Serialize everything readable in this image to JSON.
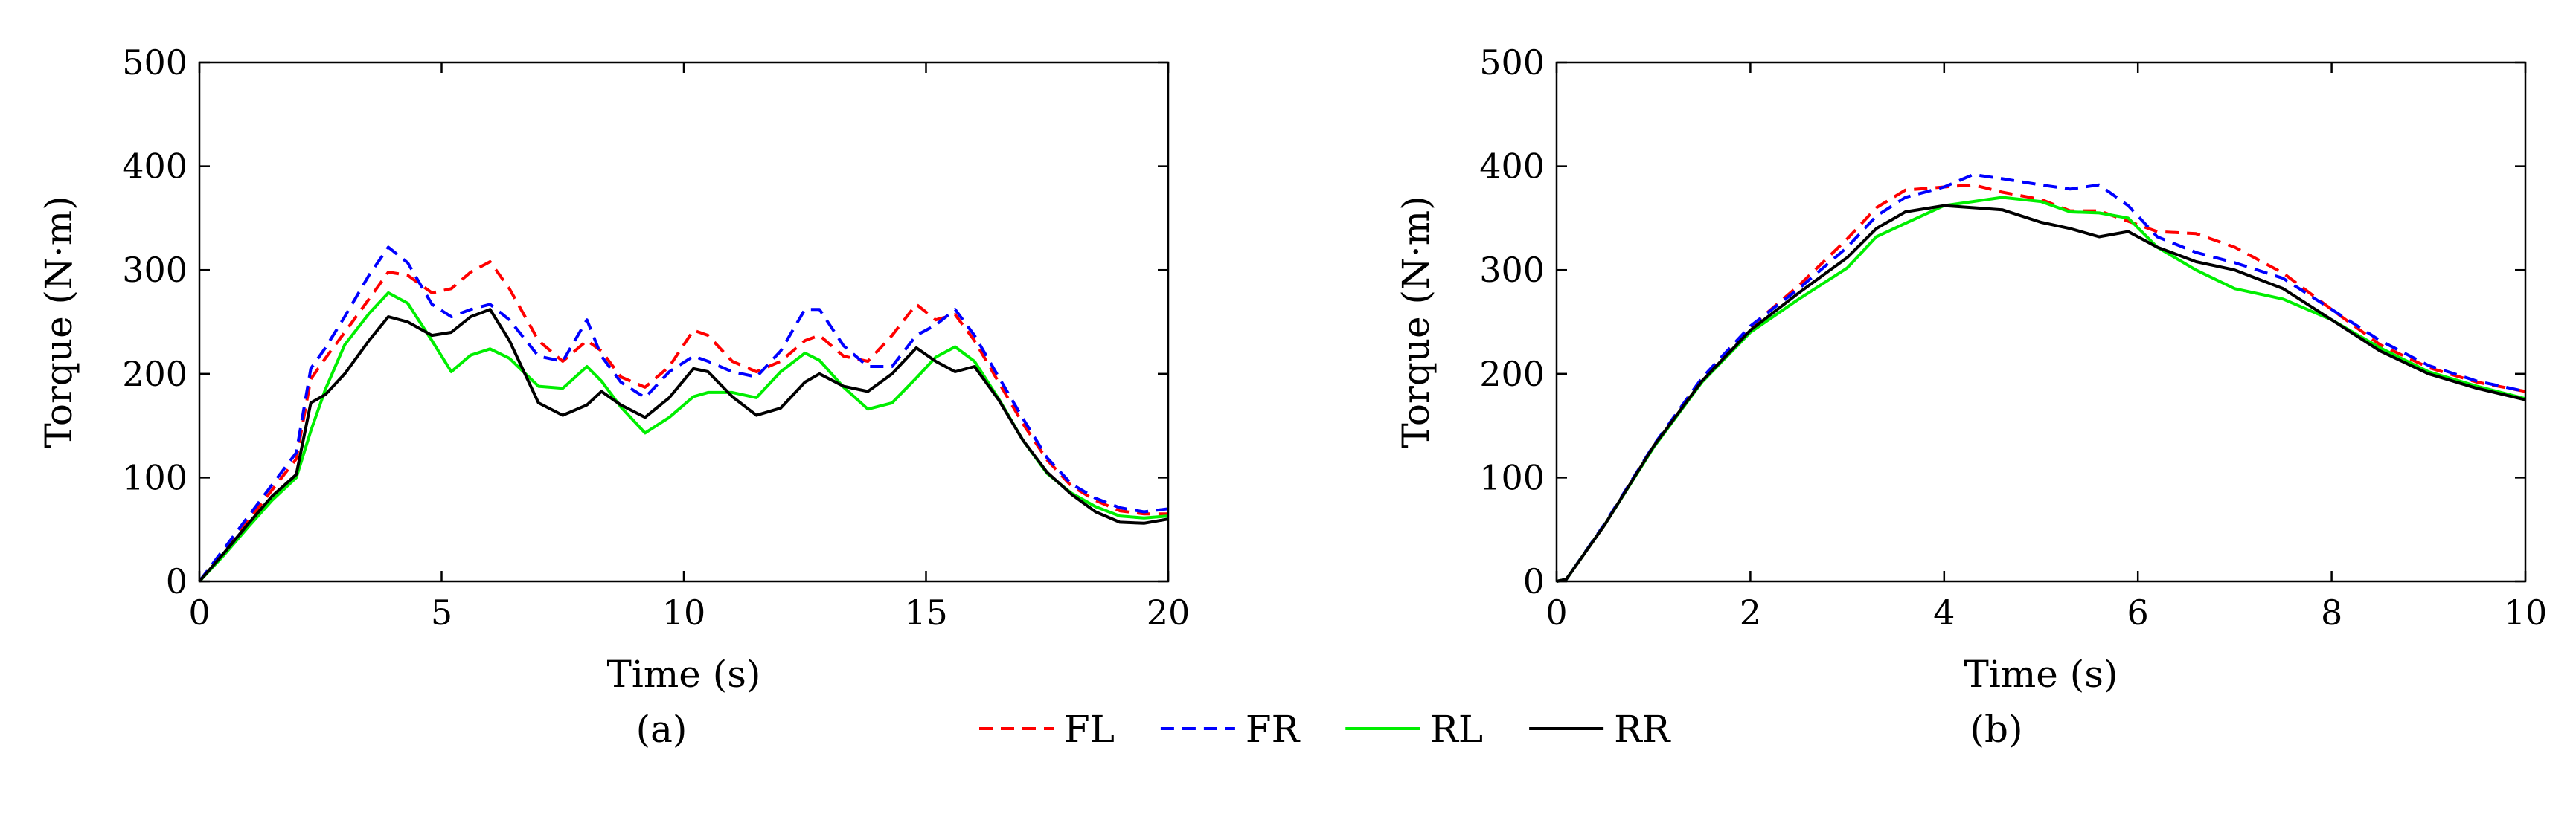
{
  "chart_data": [
    {
      "type": "line",
      "panel_label": "(a)",
      "xlabel": "Time (s)",
      "ylabel": "Torque (N·m)",
      "xlim": [
        0,
        20
      ],
      "ylim": [
        0,
        500
      ],
      "xticks": [
        0,
        5,
        10,
        15,
        20
      ],
      "yticks": [
        0,
        100,
        200,
        300,
        400,
        500
      ],
      "grid": false,
      "x": [
        0,
        0.5,
        1,
        1.5,
        2,
        2.3,
        2.6,
        3,
        3.5,
        3.9,
        4.3,
        4.8,
        5.2,
        5.6,
        6,
        6.4,
        7,
        7.5,
        8,
        8.3,
        8.7,
        9.2,
        9.7,
        10.2,
        10.5,
        11,
        11.5,
        12,
        12.5,
        12.8,
        13.3,
        13.8,
        14.3,
        14.8,
        15.2,
        15.6,
        16,
        16.5,
        17,
        17.5,
        18,
        18.5,
        19,
        19.5,
        20
      ],
      "series": [
        {
          "name": "FL",
          "color": "#ff0000",
          "dash": "dashed",
          "values": [
            0,
            28,
            58,
            88,
            118,
            195,
            215,
            240,
            272,
            298,
            295,
            278,
            282,
            298,
            308,
            282,
            232,
            212,
            232,
            222,
            197,
            187,
            207,
            242,
            237,
            212,
            202,
            212,
            232,
            237,
            217,
            212,
            237,
            267,
            252,
            257,
            232,
            192,
            152,
            117,
            92,
            78,
            68,
            65,
            65
          ]
        },
        {
          "name": "FR",
          "color": "#0000ff",
          "dash": "dashed",
          "values": [
            0,
            31,
            62,
            93,
            124,
            205,
            225,
            255,
            295,
            322,
            307,
            267,
            255,
            262,
            267,
            252,
            217,
            212,
            252,
            217,
            192,
            177,
            202,
            217,
            212,
            202,
            197,
            222,
            262,
            262,
            227,
            207,
            207,
            237,
            247,
            262,
            237,
            197,
            157,
            119,
            94,
            80,
            71,
            67,
            70
          ]
        },
        {
          "name": "RL",
          "color": "#00ee00",
          "dash": "solid",
          "values": [
            0,
            25,
            52,
            78,
            100,
            145,
            185,
            228,
            258,
            278,
            268,
            232,
            202,
            218,
            224,
            215,
            188,
            186,
            207,
            193,
            168,
            143,
            158,
            178,
            182,
            182,
            177,
            202,
            220,
            213,
            187,
            166,
            172,
            196,
            216,
            226,
            212,
            176,
            136,
            104,
            85,
            72,
            63,
            61,
            63
          ]
        },
        {
          "name": "RR",
          "color": "#000000",
          "dash": "solid",
          "values": [
            0,
            27,
            55,
            82,
            103,
            172,
            180,
            200,
            232,
            255,
            250,
            237,
            240,
            255,
            262,
            232,
            172,
            160,
            170,
            183,
            170,
            158,
            177,
            205,
            202,
            178,
            160,
            167,
            192,
            200,
            188,
            183,
            200,
            225,
            212,
            202,
            207,
            175,
            136,
            105,
            84,
            67,
            57,
            56,
            60
          ]
        }
      ]
    },
    {
      "type": "line",
      "panel_label": "(b)",
      "xlabel": "Time (s)",
      "ylabel": "Torque (N·m)",
      "xlim": [
        0,
        10
      ],
      "ylim": [
        0,
        500
      ],
      "xticks": [
        0,
        2,
        4,
        6,
        8,
        10
      ],
      "yticks": [
        0,
        100,
        200,
        300,
        400,
        500
      ],
      "grid": false,
      "x": [
        0,
        0.1,
        0.5,
        1,
        1.5,
        2,
        2.5,
        3,
        3.3,
        3.6,
        4,
        4.3,
        4.6,
        5,
        5.3,
        5.6,
        5.9,
        6.2,
        6.6,
        7,
        7.5,
        8,
        8.5,
        9,
        9.5,
        10
      ],
      "series": [
        {
          "name": "FL",
          "color": "#ff0000",
          "dash": "dashed",
          "values": [
            0,
            2,
            55,
            130,
            195,
            245,
            285,
            330,
            360,
            377,
            380,
            382,
            375,
            368,
            357,
            357,
            347,
            337,
            335,
            322,
            297,
            262,
            228,
            206,
            192,
            183
          ]
        },
        {
          "name": "FR",
          "color": "#0000ff",
          "dash": "dashed",
          "values": [
            0,
            2,
            56,
            131,
            196,
            246,
            282,
            322,
            352,
            370,
            380,
            392,
            388,
            382,
            378,
            382,
            362,
            332,
            317,
            307,
            292,
            262,
            232,
            208,
            193,
            183
          ]
        },
        {
          "name": "RL",
          "color": "#00ee00",
          "dash": "solid",
          "values": [
            0,
            2,
            55,
            129,
            192,
            240,
            272,
            302,
            332,
            345,
            362,
            366,
            370,
            366,
            356,
            355,
            350,
            322,
            300,
            282,
            272,
            252,
            225,
            202,
            188,
            176
          ]
        },
        {
          "name": "RR",
          "color": "#000000",
          "dash": "solid",
          "values": [
            0,
            2,
            55,
            130,
            193,
            242,
            278,
            312,
            340,
            356,
            362,
            360,
            358,
            346,
            340,
            332,
            337,
            322,
            308,
            300,
            282,
            252,
            222,
            200,
            186,
            175
          ]
        }
      ]
    }
  ],
  "legend": {
    "placement": "bottom-center",
    "entries": [
      {
        "label": "FL",
        "color": "#ff0000",
        "dash": "dashed"
      },
      {
        "label": "FR",
        "color": "#0000ff",
        "dash": "dashed"
      },
      {
        "label": "RL",
        "color": "#00ee00",
        "dash": "solid"
      },
      {
        "label": "RR",
        "color": "#000000",
        "dash": "solid"
      }
    ]
  }
}
